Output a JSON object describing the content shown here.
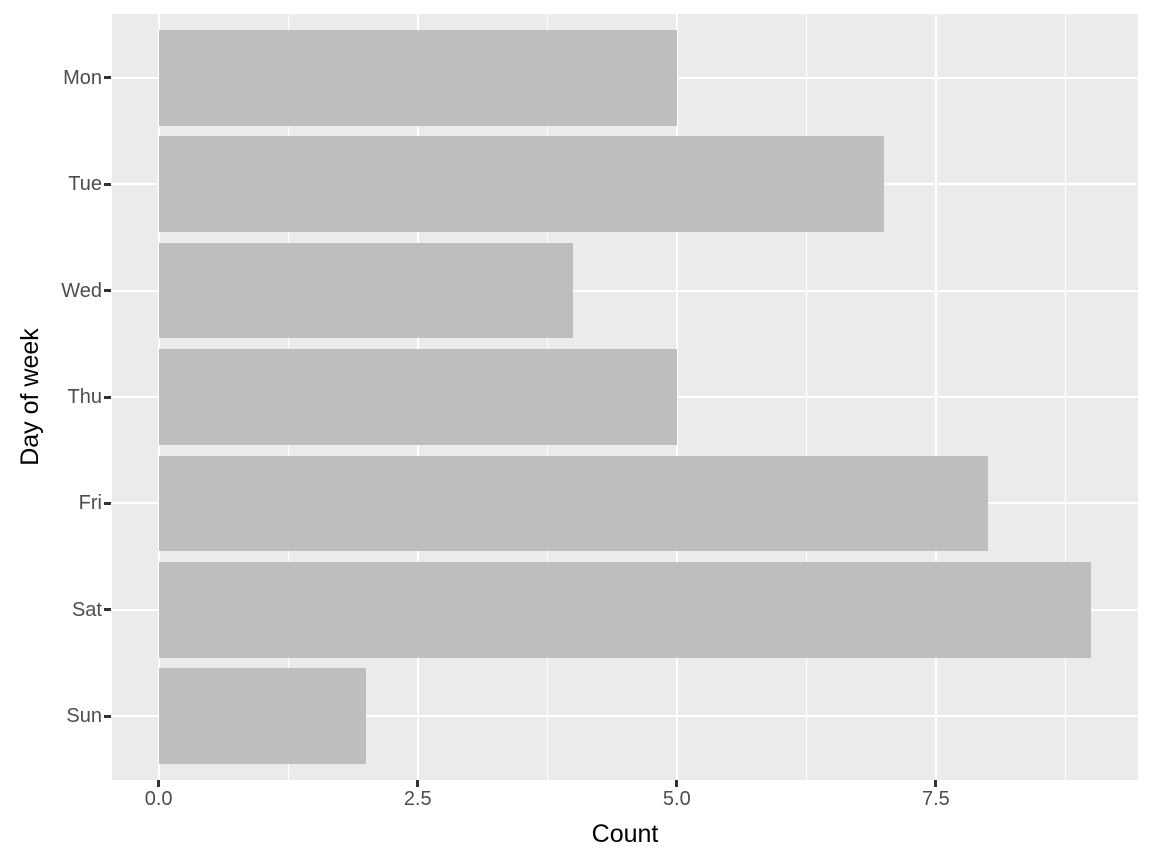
{
  "chart_data": {
    "type": "bar",
    "orientation": "horizontal",
    "title": "",
    "xlabel": "Count",
    "ylabel": "Day of week",
    "categories": [
      "Mon",
      "Tue",
      "Wed",
      "Thu",
      "Fri",
      "Sat",
      "Sun"
    ],
    "values": [
      5,
      7,
      4,
      5,
      8,
      9,
      2
    ],
    "x_ticks": [
      {
        "value": 0,
        "label": "0.0"
      },
      {
        "value": 2.5,
        "label": "2.5"
      },
      {
        "value": 5,
        "label": "5.0"
      },
      {
        "value": 7.5,
        "label": "7.5"
      }
    ],
    "x_minor_gridlines": [
      1.25,
      3.75,
      6.25,
      8.75
    ],
    "xlim": [
      -0.45,
      9.45
    ],
    "y_pad_units": 0.6,
    "bar_width_units": 0.9,
    "grid": true,
    "legend": "none",
    "colors": {
      "panel_background": "#EBEBEB",
      "bar_fill": "#BEBEBE",
      "gridline": "#FFFFFF",
      "tick_label_text": "#4D4D4D",
      "axis_title_text": "#000000",
      "tick_mark": "#333333",
      "figure_background": "#FFFFFF"
    }
  }
}
